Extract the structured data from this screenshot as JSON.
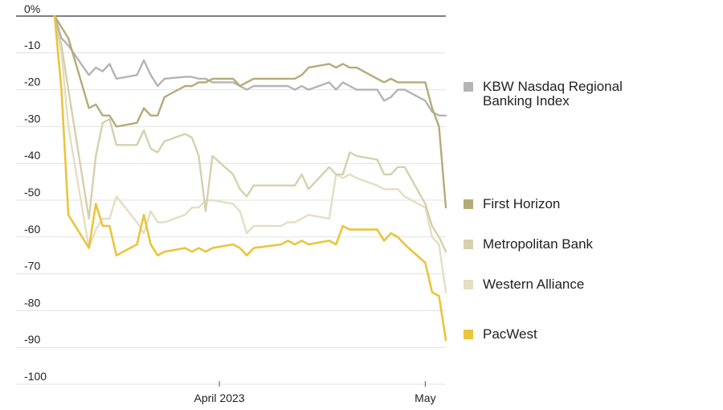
{
  "chart_data": {
    "type": "line",
    "title": "",
    "xlabel": "",
    "ylabel": "",
    "ylim": [
      -100,
      0
    ],
    "y_ticks": [
      {
        "value": 0,
        "label": "0%"
      },
      {
        "value": -10,
        "label": "-10"
      },
      {
        "value": -20,
        "label": "-20"
      },
      {
        "value": -30,
        "label": "-30"
      },
      {
        "value": -40,
        "label": "-40"
      },
      {
        "value": -50,
        "label": "-50"
      },
      {
        "value": -60,
        "label": "-60"
      },
      {
        "value": -70,
        "label": "-70"
      },
      {
        "value": -80,
        "label": "-80"
      },
      {
        "value": -90,
        "label": "-90"
      },
      {
        "value": -100,
        "label": "-100"
      }
    ],
    "x_ticks": [
      {
        "date": "2023-04-01",
        "label": "April 2023"
      },
      {
        "date": "2023-05-01",
        "label": "May"
      }
    ],
    "x_range": [
      "2023-03-08",
      "2023-05-04"
    ],
    "grid": "horizontal",
    "legend_position": "right",
    "x": [
      "2023-03-08",
      "2023-03-09",
      "2023-03-10",
      "2023-03-13",
      "2023-03-14",
      "2023-03-15",
      "2023-03-16",
      "2023-03-17",
      "2023-03-20",
      "2023-03-21",
      "2023-03-22",
      "2023-03-23",
      "2023-03-24",
      "2023-03-27",
      "2023-03-28",
      "2023-03-29",
      "2023-03-30",
      "2023-03-31",
      "2023-04-03",
      "2023-04-04",
      "2023-04-05",
      "2023-04-06",
      "2023-04-10",
      "2023-04-11",
      "2023-04-12",
      "2023-04-13",
      "2023-04-14",
      "2023-04-17",
      "2023-04-18",
      "2023-04-19",
      "2023-04-20",
      "2023-04-21",
      "2023-04-24",
      "2023-04-25",
      "2023-04-26",
      "2023-04-27",
      "2023-04-28",
      "2023-05-01",
      "2023-05-02",
      "2023-05-03",
      "2023-05-04"
    ],
    "series": [
      {
        "name": "KBW Nasdaq Regional Banking Index",
        "color": "#b4b4b4",
        "values": [
          0,
          -6,
          -8,
          -16,
          -14,
          -15,
          -13,
          -17,
          -16,
          -12,
          -16,
          -19,
          -17,
          -16.5,
          -16.5,
          -17,
          -17,
          -18,
          -18,
          -19,
          -20,
          -19,
          -19,
          -19,
          -20,
          -19,
          -20,
          -18,
          -20,
          -18,
          -19,
          -20,
          -20,
          -23,
          -22,
          -20,
          -20,
          -23,
          -26,
          -27,
          -27
        ]
      },
      {
        "name": "First Horizon",
        "color": "#b5ab78",
        "values": [
          0,
          -3,
          -6,
          -25,
          -24,
          -27,
          -27,
          -30,
          -29,
          -25,
          -27,
          -27,
          -22,
          -19,
          -19,
          -18,
          -18,
          -17,
          -17,
          -19,
          -18,
          -17,
          -17,
          -17,
          -17,
          -16,
          -14,
          -13,
          -14,
          -13,
          -14,
          -14,
          -17,
          -18,
          -17,
          -18,
          -18,
          -18,
          -25,
          -30,
          -52
        ]
      },
      {
        "name": "Metropolitan Bank",
        "color": "#d6d0ad",
        "values": [
          0,
          -8,
          -20,
          -55,
          -38,
          -29,
          -28,
          -35,
          -35,
          -31,
          -36,
          -37,
          -34,
          -32,
          -33,
          -38,
          -53,
          -38,
          -43,
          -47,
          -49,
          -46,
          -46,
          -46,
          -46,
          -43,
          -47,
          -41,
          -43,
          -43,
          -37,
          -38,
          -39,
          -43,
          -43,
          -41,
          -41,
          -51,
          -57,
          -60,
          -64
        ]
      },
      {
        "name": "Western Alliance",
        "color": "#e4dec2",
        "values": [
          0,
          -10,
          -30,
          -63,
          -58,
          -55,
          -55,
          -49,
          -56,
          -59,
          -53,
          -56,
          -56,
          -54,
          -52,
          -52,
          -50,
          -50,
          -51,
          -53,
          -59,
          -57,
          -57,
          -56,
          -56,
          -55,
          -54,
          -55,
          -43,
          -44,
          -43,
          -44,
          -46,
          -47,
          -47,
          -47,
          -49,
          -52,
          -60,
          -62,
          -75
        ]
      },
      {
        "name": "PacWest",
        "color": "#ebc43c",
        "values": [
          0,
          -20,
          -54,
          -63,
          -51,
          -57,
          -57,
          -65,
          -62,
          -54,
          -62,
          -65,
          -64,
          -63,
          -64,
          -63,
          -64,
          -63,
          -62,
          -63,
          -65,
          -63,
          -62,
          -61,
          -62,
          -61,
          -62,
          -61,
          -62,
          -57,
          -58,
          -58,
          -58,
          -61,
          -59,
          -60,
          -62,
          -67,
          -75,
          -76,
          -88
        ]
      }
    ]
  },
  "legend": {
    "items": [
      {
        "label": "KBW Nasdaq Regional Banking Index",
        "color": "#b4b4b4"
      },
      {
        "label": "First Horizon",
        "color": "#b5ab78"
      },
      {
        "label": "Metropolitan Bank",
        "color": "#d6d0ad"
      },
      {
        "label": "Western Alliance",
        "color": "#e4dec2"
      },
      {
        "label": "PacWest",
        "color": "#ebc43c"
      }
    ]
  }
}
